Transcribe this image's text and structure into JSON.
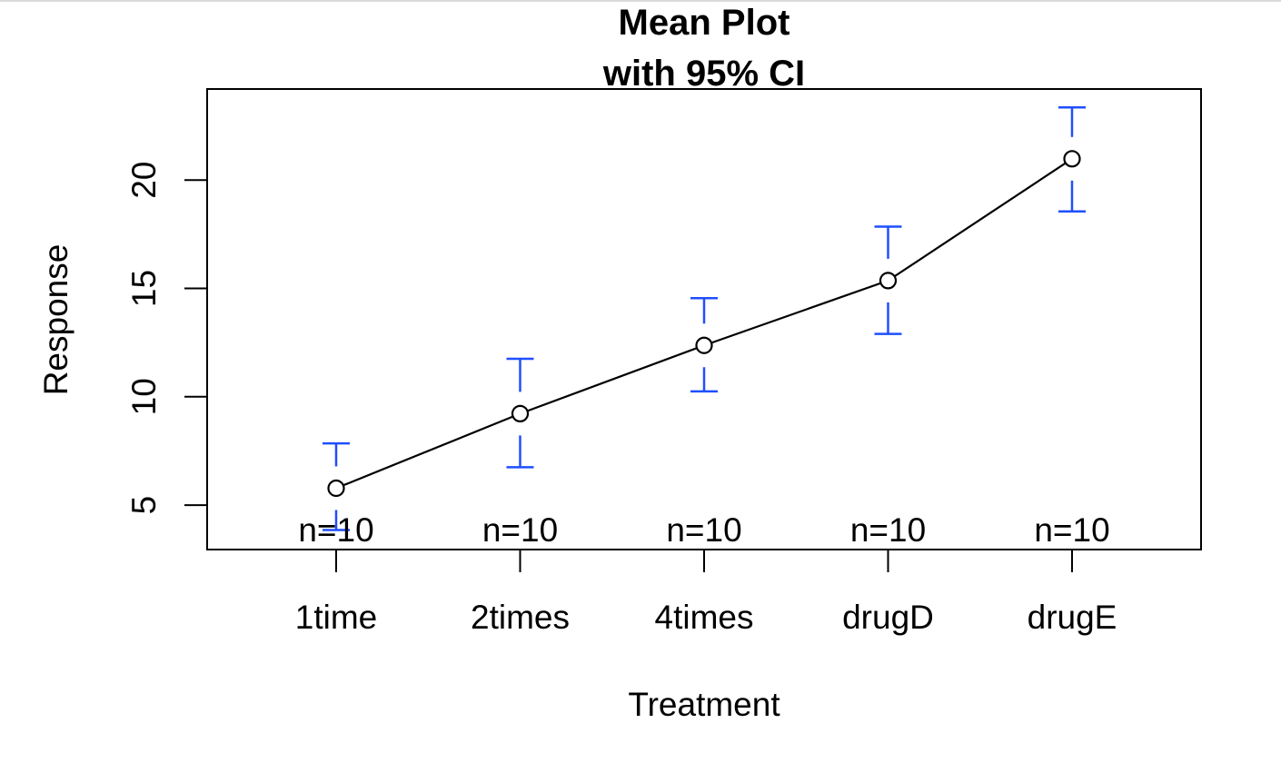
{
  "chart_data": {
    "type": "line",
    "title_lines": [
      "Mean Plot",
      "with 95% CI"
    ],
    "xlabel": "Treatment",
    "ylabel": "Response",
    "categories": [
      "1time",
      "2times",
      "4times",
      "drugD",
      "drugE"
    ],
    "means": [
      5.78,
      9.22,
      12.37,
      15.36,
      20.98
    ],
    "ci_lower": [
      3.85,
      6.75,
      10.25,
      12.9,
      18.55
    ],
    "ci_upper": [
      7.85,
      11.75,
      14.55,
      17.85,
      23.35
    ],
    "n_labels": [
      "n=10",
      "n=10",
      "n=10",
      "n=10",
      "n=10"
    ],
    "yticks": [
      5,
      10,
      15,
      20
    ],
    "ylim": [
      2.95,
      24.2
    ],
    "grid": false,
    "colors": {
      "line": "#000000",
      "error_bars": "#1f4fff",
      "points": "#000000"
    }
  }
}
